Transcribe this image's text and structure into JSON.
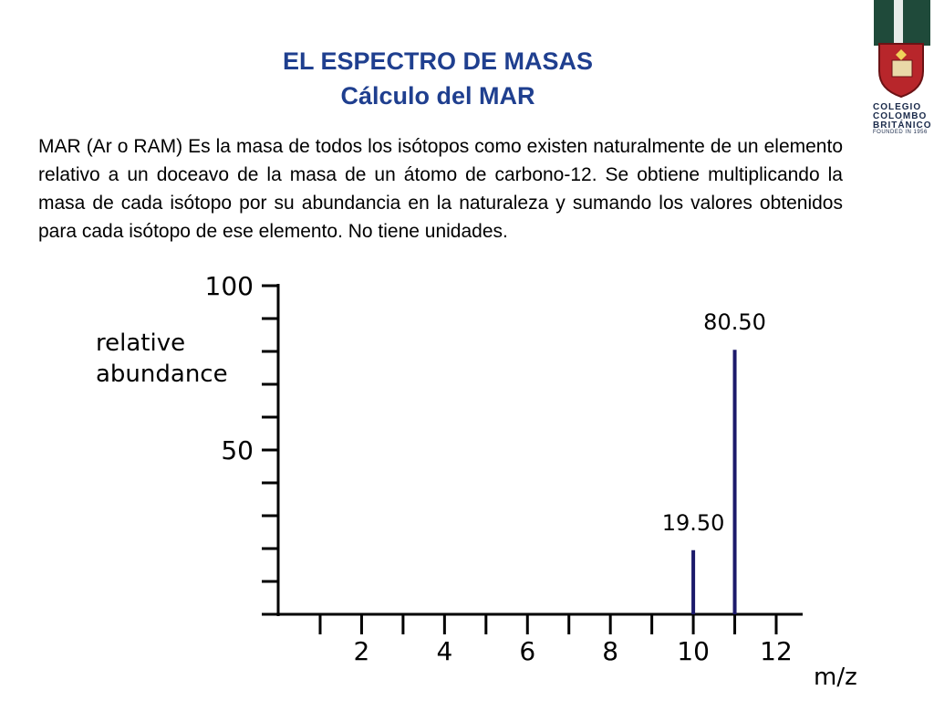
{
  "slide": {
    "title_line1": "EL ESPECTRO DE MASAS",
    "title_line2": "Cálculo del MAR",
    "body": "MAR (Ar o RAM) Es la masa de todos los isótopos como existen naturalmente de un elemento relativo a un doceavo de la masa de un átomo de carbono-12. Se obtiene multiplicando la masa de cada isótopo por su abundancia en la naturaleza y sumando los valores obtenidos para cada isótopo de ese elemento. No tiene unidades."
  },
  "logo": {
    "line1": "COLEGIO",
    "line2": "COLOMBO",
    "line3": "BRITÁNICO",
    "founded": "FOUNDED IN 1956"
  },
  "colors": {
    "title": "#1f3f8f",
    "bars": "#1c1a6b",
    "logo_green": "#1f4a3a",
    "logo_red": "#b8262b"
  },
  "chart_data": {
    "type": "bar",
    "xlabel": "m/z",
    "ylabel_line1": "relative",
    "ylabel_line2": "abundance",
    "xlim": [
      1,
      13
    ],
    "ylim": [
      0,
      100
    ],
    "x_ticks": [
      1,
      2,
      3,
      4,
      5,
      6,
      7,
      8,
      9,
      10,
      11,
      12
    ],
    "x_tick_labels": [
      {
        "x": 2,
        "label": "2"
      },
      {
        "x": 4,
        "label": "4"
      },
      {
        "x": 6,
        "label": "6"
      },
      {
        "x": 8,
        "label": "8"
      },
      {
        "x": 10,
        "label": "10"
      },
      {
        "x": 12,
        "label": "12"
      }
    ],
    "y_ticks": [
      0,
      10,
      20,
      30,
      40,
      50,
      60,
      70,
      80,
      90,
      100
    ],
    "y_tick_labels": [
      {
        "y": 50,
        "label": "50"
      },
      {
        "y": 100,
        "label": "100"
      }
    ],
    "points": [
      {
        "x": 10,
        "y": 19.5,
        "label": "19.50"
      },
      {
        "x": 11,
        "y": 80.5,
        "label": "80.50"
      }
    ],
    "grid": false
  }
}
